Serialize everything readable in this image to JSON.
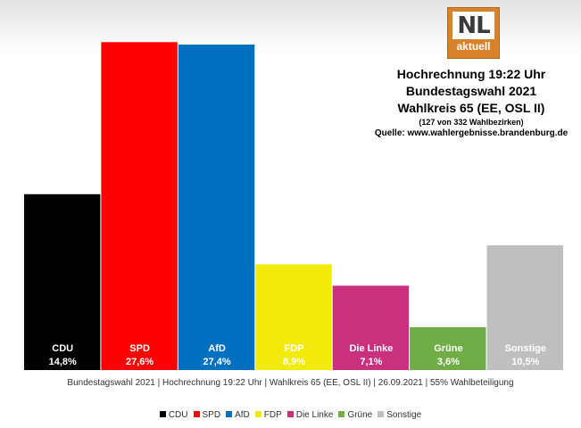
{
  "logo": {
    "main": "NL",
    "sub": "aktuell"
  },
  "header": {
    "line1": "Hochrechnung 19:22 Uhr",
    "line2": "Bundestagswahl 2021",
    "line3": "Wahlkreis 65 (EE, OSL II)",
    "line4": "(127 von 332 Wahlbezirken)",
    "line5": "Quelle: www.wahlergebnisse.brandenburg.de"
  },
  "footer_note": "Bundestagswahl 2021 | Hochrechnung 19:22 Uhr | Wahlkreis 65 (EE, OSL II) | 26.09.2021 | 55% Wahlbeteiligung",
  "chart_data": {
    "type": "bar",
    "categories": [
      "CDU",
      "SPD",
      "AfD",
      "FDP",
      "Die Linke",
      "Grüne",
      "Sonstige"
    ],
    "values": [
      14.8,
      27.6,
      27.4,
      8.9,
      7.1,
      3.6,
      10.5
    ],
    "value_labels": [
      "14,8%",
      "27,6%",
      "27,4%",
      "8,9%",
      "7,1%",
      "3,6%",
      "10,5%"
    ],
    "colors": [
      "#000000",
      "#ff0000",
      "#0070c0",
      "#f2ea0b",
      "#c9307e",
      "#70ad47",
      "#bfbfbf"
    ],
    "label_colors": [
      "#ffffff",
      "#ffffff",
      "#ffffff",
      "#ffffff",
      "#ffffff",
      "#ffffff",
      "#ffffff"
    ],
    "ylim": [
      0,
      28
    ],
    "legend": [
      "CDU",
      "SPD",
      "AfD",
      "FDP",
      "Die Linke",
      "Grüne",
      "Sonstige"
    ],
    "legend_position": "bottom",
    "grid": false
  }
}
